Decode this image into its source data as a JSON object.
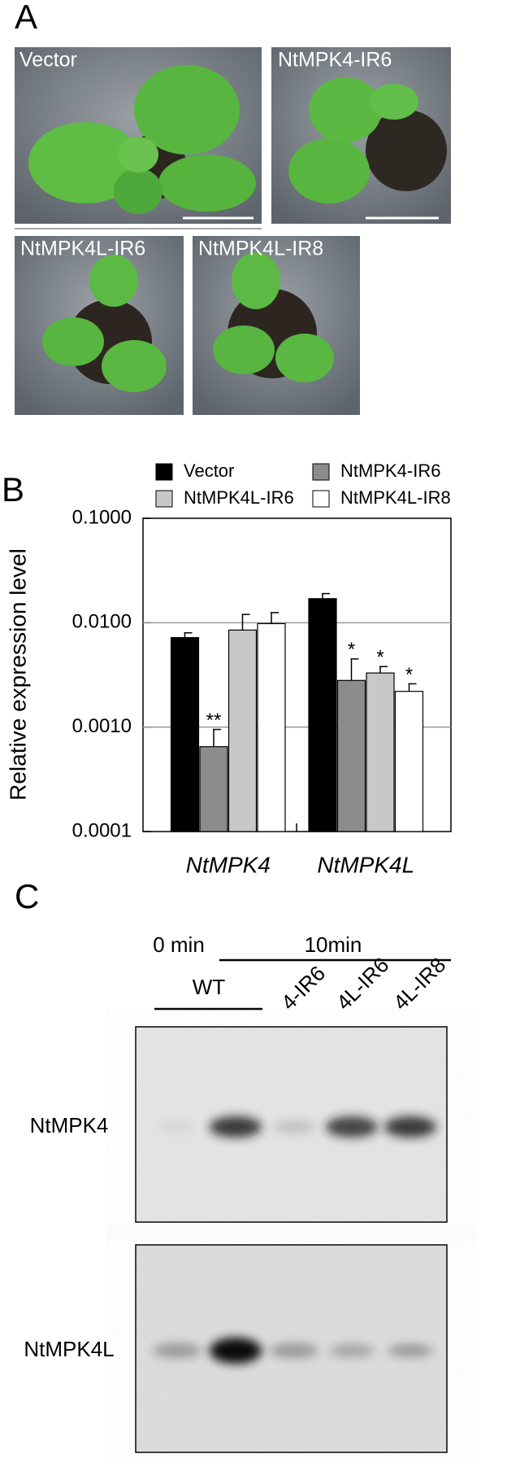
{
  "panel_a": {
    "label": "A",
    "photos": [
      {
        "label": "Vector"
      },
      {
        "label": "NtMPK4-IR6"
      },
      {
        "label": "NtMPK4L-IR6"
      },
      {
        "label": "NtMPK4L-IR8"
      }
    ]
  },
  "panel_b": {
    "label": "B"
  },
  "chart_data": {
    "type": "bar",
    "y_label": "Relative expression level",
    "log_scale": true,
    "grid": true,
    "legend": "top",
    "categories": [
      "NtMPK4",
      "NtMPK4L"
    ],
    "series": [
      {
        "name": "Vector",
        "color": "#000000",
        "values": [
          0.0072,
          0.017
        ],
        "errors": [
          0.0008,
          0.002
        ],
        "significance": [
          null,
          null
        ]
      },
      {
        "name": "NtMPK4-IR6",
        "color": "#8c8c8c",
        "values": [
          0.00065,
          0.0028
        ],
        "errors": [
          0.0003,
          0.0017
        ],
        "significance": [
          "**",
          "*"
        ]
      },
      {
        "name": "NtMPK4L-IR6",
        "color": "#c8c8c8",
        "values": [
          0.0085,
          0.0033
        ],
        "errors": [
          0.0035,
          0.0005
        ],
        "significance": [
          null,
          "*"
        ]
      },
      {
        "name": "NtMPK4L-IR8",
        "color": "#ffffff",
        "values": [
          0.0098,
          0.0022
        ],
        "errors": [
          0.0027,
          0.0004
        ],
        "significance": [
          null,
          "*"
        ]
      }
    ],
    "ylim": [
      0.0001,
      0.1
    ],
    "yticks": [
      {
        "value": 0.0001,
        "label": "0.0001"
      },
      {
        "value": 0.001,
        "label": "0.0010"
      },
      {
        "value": 0.01,
        "label": "0.0100"
      },
      {
        "value": 0.1,
        "label": "0.1000"
      }
    ]
  },
  "panel_c": {
    "label": "C",
    "time_0": "0 min",
    "time_10": "10min",
    "lanes": [
      "WT",
      "4-IR6",
      "4L-IR6",
      "4L-IR8"
    ],
    "rows": [
      "NtMPK4",
      "NtMPK4L"
    ]
  }
}
